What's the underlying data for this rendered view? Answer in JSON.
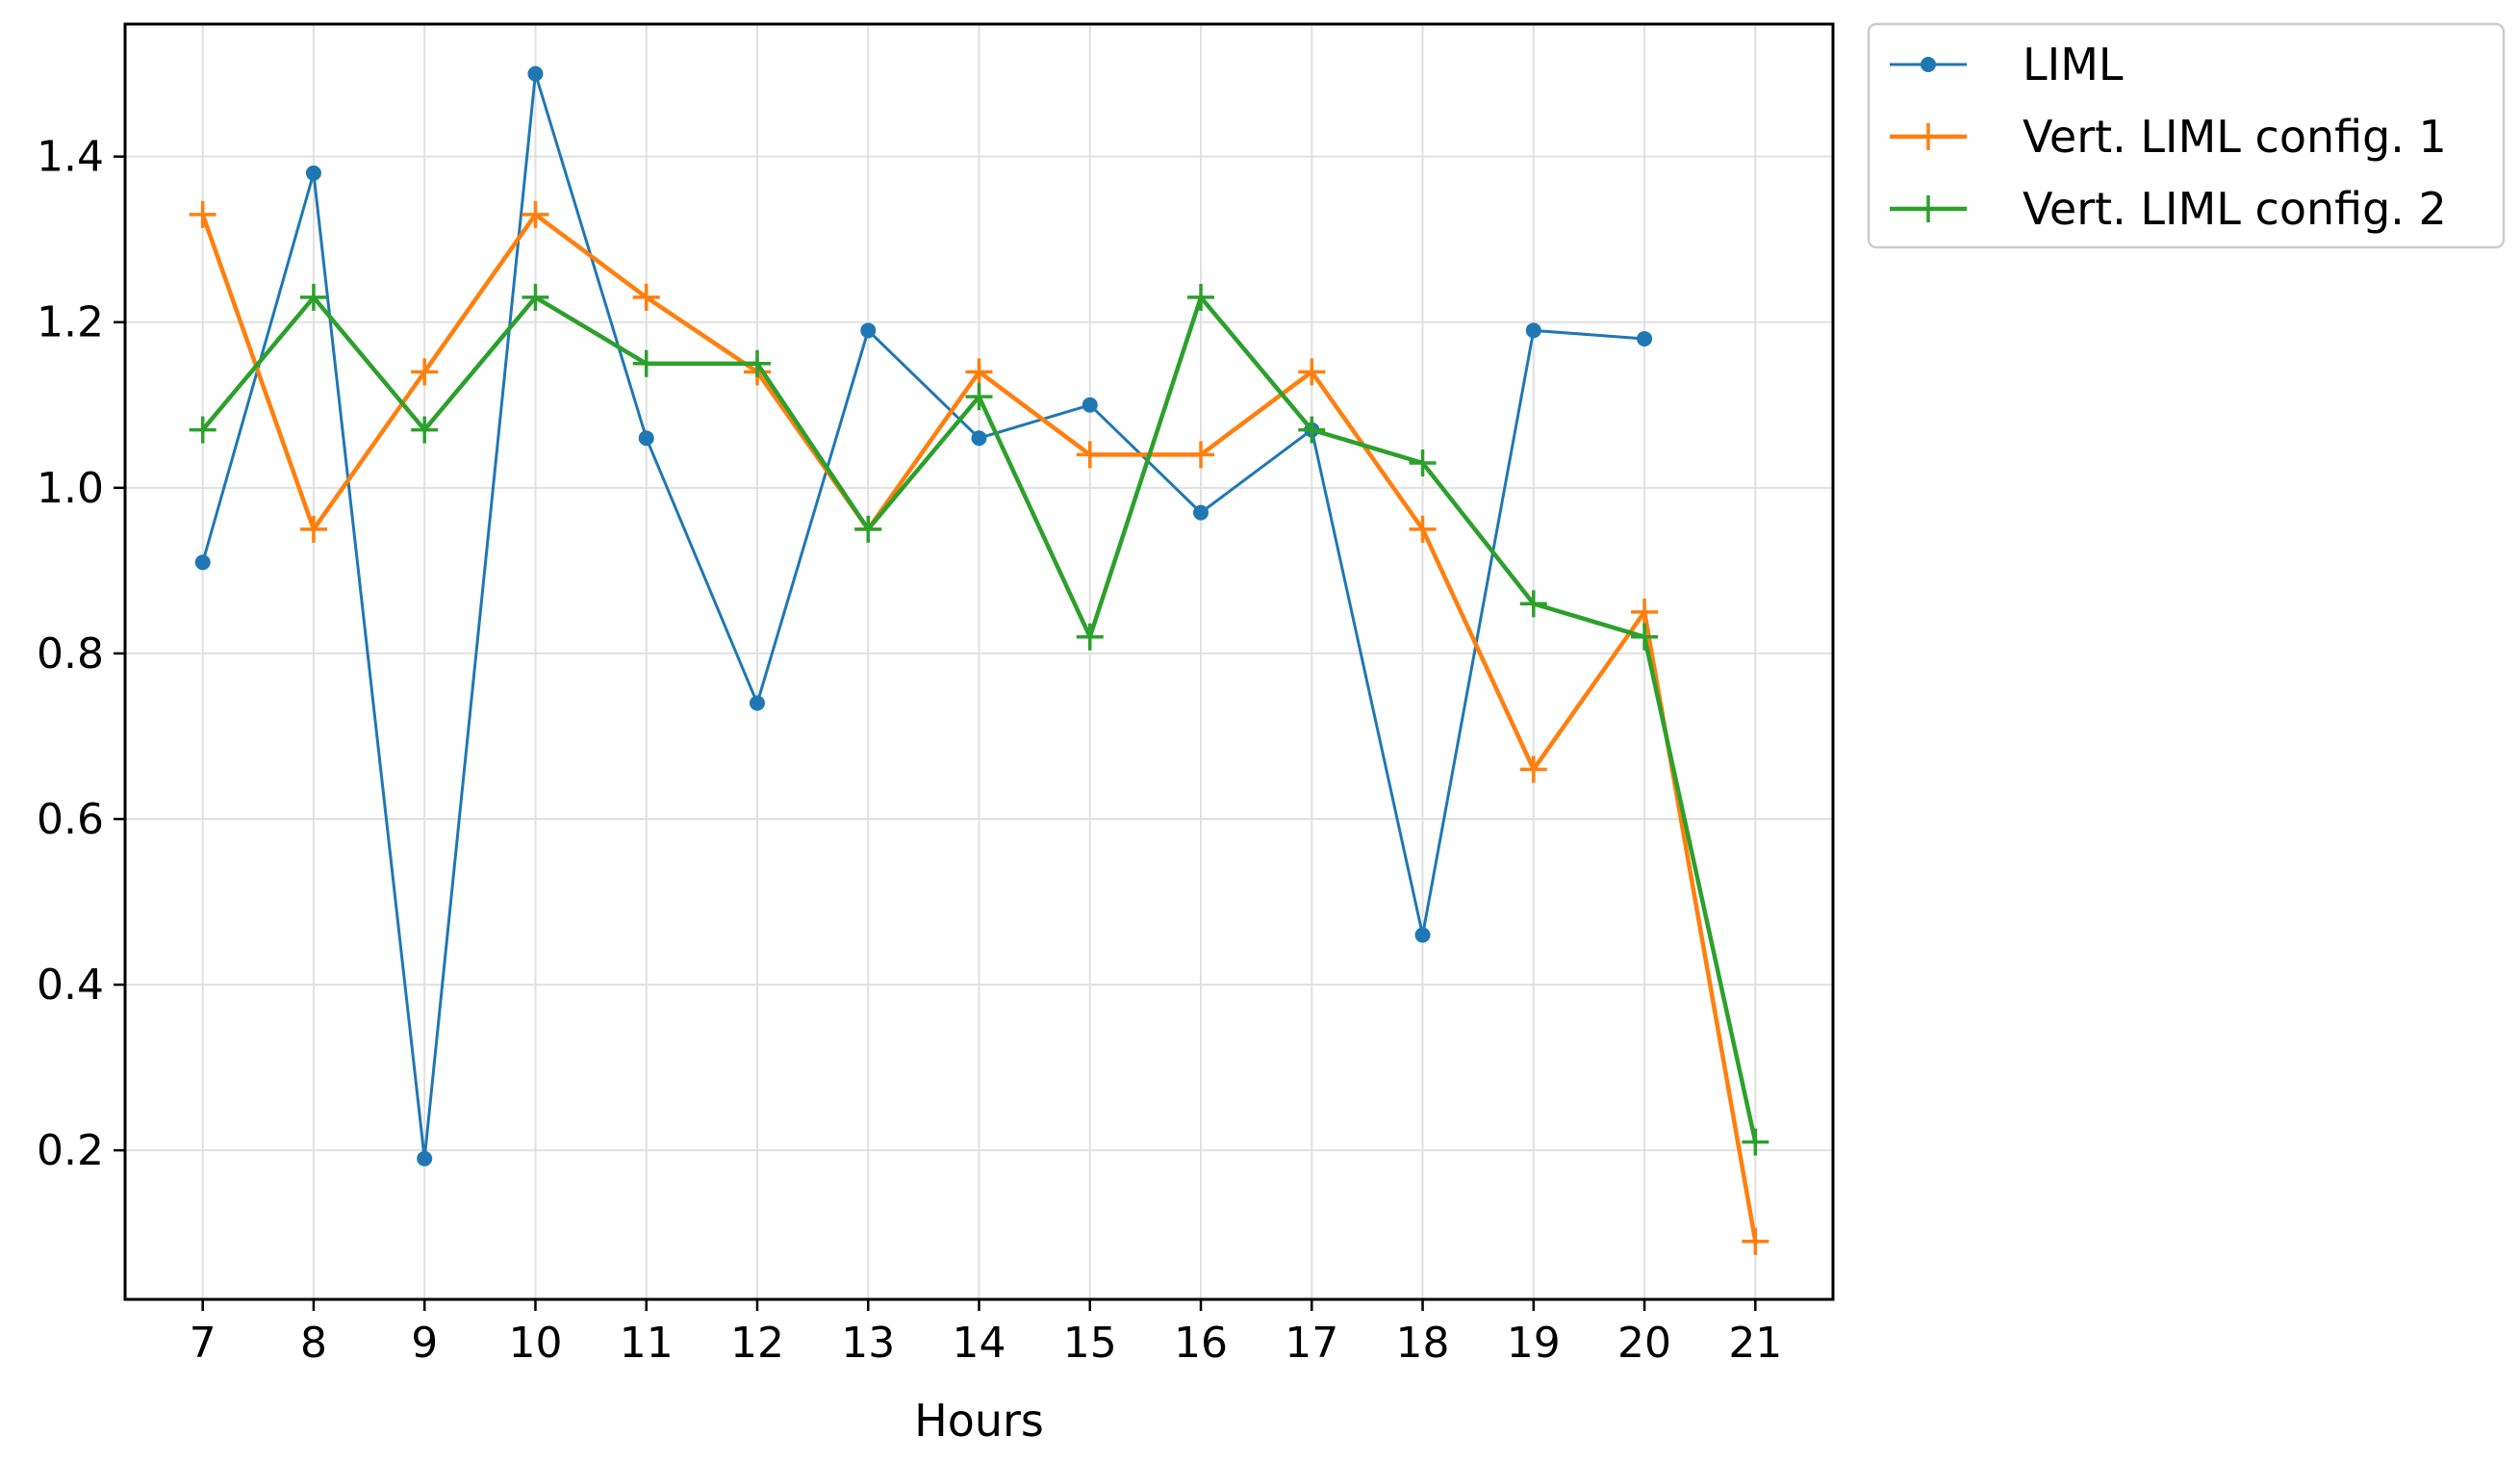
{
  "chart_data": {
    "type": "line",
    "title": "",
    "xlabel": "Hours",
    "ylabel": "",
    "x": [
      7,
      8,
      9,
      10,
      11,
      12,
      13,
      14,
      15,
      16,
      17,
      18,
      19,
      20,
      21
    ],
    "xlim": [
      6.3,
      21.7
    ],
    "ylim": [
      0.02,
      1.56
    ],
    "x_ticks": [
      7,
      8,
      9,
      10,
      11,
      12,
      13,
      14,
      15,
      16,
      17,
      18,
      19,
      20,
      21
    ],
    "y_ticks": [
      0.2,
      0.4,
      0.6,
      0.8,
      1.0,
      1.2,
      1.4
    ],
    "y_tick_labels": [
      "0.2",
      "0.4",
      "0.6",
      "0.8",
      "1.0",
      "1.2",
      "1.4"
    ],
    "grid": true,
    "legend_position": "outside-top-right",
    "series": [
      {
        "name": "LIML",
        "color": "#1f77b4",
        "marker": "dot",
        "values": [
          0.91,
          1.38,
          0.19,
          1.5,
          1.06,
          0.74,
          1.19,
          1.06,
          1.1,
          0.97,
          1.07,
          0.46,
          1.19,
          1.18,
          null
        ]
      },
      {
        "name": "Vert. LIML config. 1",
        "color": "#ff7f0e",
        "marker": "plus",
        "values": [
          1.33,
          0.95,
          1.14,
          1.33,
          1.23,
          1.14,
          0.95,
          1.14,
          1.04,
          1.04,
          1.14,
          0.95,
          0.66,
          0.85,
          0.09
        ]
      },
      {
        "name": "Vert. LIML config. 2",
        "color": "#2ca02c",
        "marker": "plus",
        "values": [
          1.07,
          1.23,
          1.07,
          1.23,
          1.15,
          1.15,
          0.95,
          1.11,
          0.82,
          1.23,
          1.07,
          1.03,
          0.86,
          0.82,
          0.21
        ]
      }
    ]
  }
}
